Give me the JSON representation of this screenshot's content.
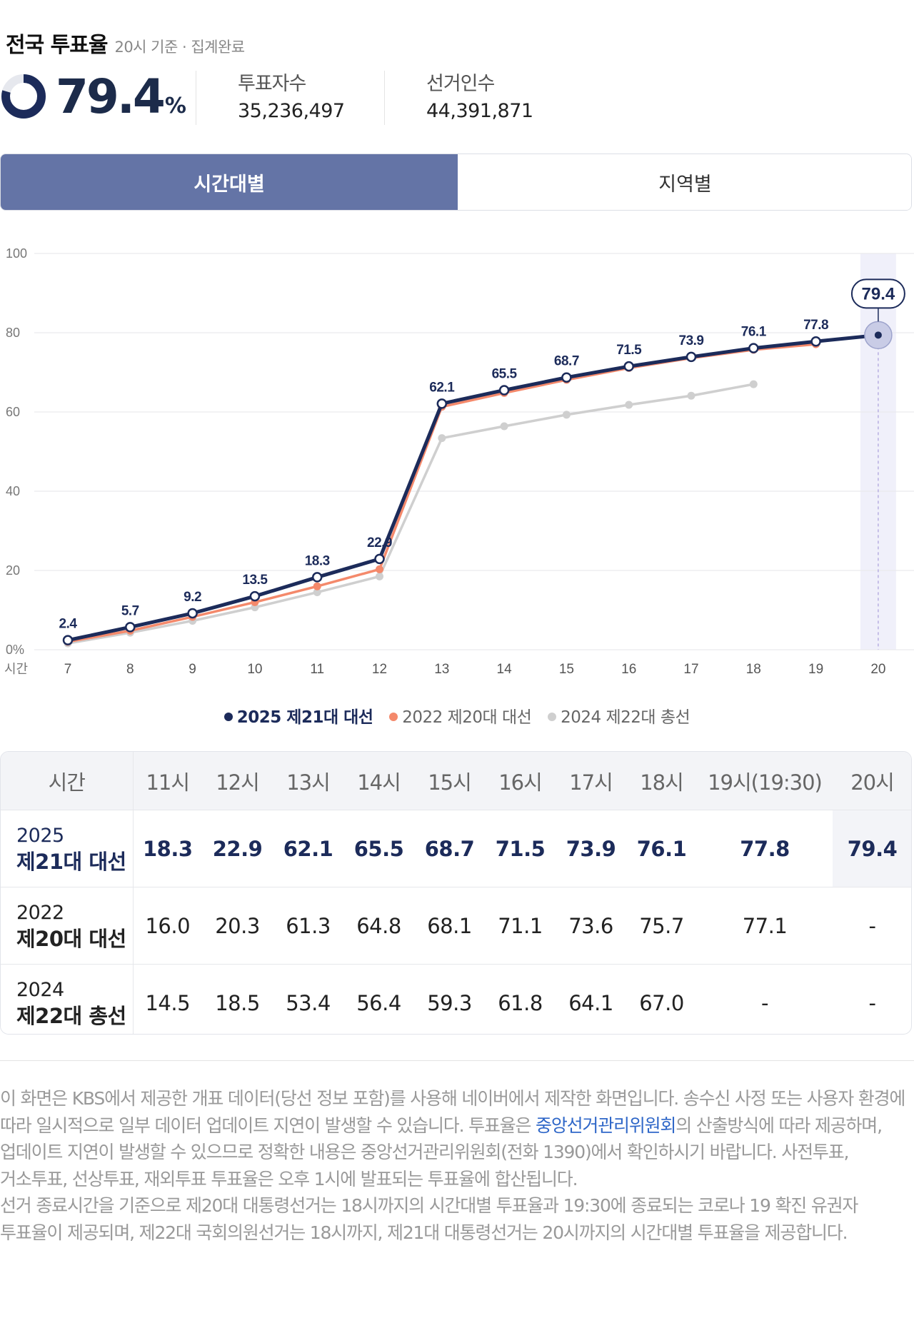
{
  "header": {
    "title": "전국 투표율",
    "subtitle": "20시 기준 · 집계완료"
  },
  "summary": {
    "rate": "79.4",
    "rate_unit": "%",
    "voters_label": "투표자수",
    "voters_value": "35,236,497",
    "electorate_label": "선거인수",
    "electorate_value": "44,391,871"
  },
  "tabs": [
    {
      "label": "시간대별",
      "active": true
    },
    {
      "label": "지역별",
      "active": false
    }
  ],
  "chart_data": {
    "type": "line",
    "x_axis_label": "시간",
    "x": [
      7,
      8,
      9,
      10,
      11,
      12,
      13,
      14,
      15,
      16,
      17,
      18,
      19,
      20
    ],
    "ylim": [
      0,
      100
    ],
    "y_ticks": [
      "0%",
      "20",
      "40",
      "60",
      "80",
      "100"
    ],
    "grid": true,
    "highlight_x": 20,
    "highlight_label": "79.4",
    "series": [
      {
        "name": "2025 제21대 대선",
        "color": "#1c2b5a",
        "values": [
          2.4,
          5.7,
          9.2,
          13.5,
          18.3,
          22.9,
          62.1,
          65.5,
          68.7,
          71.5,
          73.9,
          76.1,
          77.8,
          79.4
        ],
        "labels": [
          "2.4",
          "5.7",
          "9.2",
          "13.5",
          "18.3",
          "22.9",
          "62.1",
          "65.5",
          "68.7",
          "71.5",
          "73.9",
          "76.1",
          "77.8",
          ""
        ]
      },
      {
        "name": "2022 제20대 대선",
        "color": "#f4896b",
        "values": [
          2.0,
          4.8,
          8.3,
          12.0,
          16.0,
          20.3,
          61.3,
          64.8,
          68.1,
          71.1,
          73.6,
          75.7,
          77.1,
          null
        ]
      },
      {
        "name": "2024 제22대 총선",
        "color": "#cfcfcf",
        "values": [
          1.6,
          4.3,
          7.3,
          10.7,
          14.5,
          18.5,
          53.4,
          56.4,
          59.3,
          61.8,
          64.1,
          67.0,
          null,
          null
        ]
      }
    ]
  },
  "legend": [
    {
      "label": "2025 제21대 대선",
      "color": "#1c2b5a"
    },
    {
      "label": "2022 제20대 대선",
      "color": "#f4896b"
    },
    {
      "label": "2024 제22대 총선",
      "color": "#cfcfcf"
    }
  ],
  "table": {
    "corner": "시간",
    "columns": [
      "11시",
      "12시",
      "13시",
      "14시",
      "15시",
      "16시",
      "17시",
      "18시",
      "19시(19:30)",
      "20시"
    ],
    "rows": [
      {
        "year": "2025",
        "name": "제21대 대선",
        "values": [
          "18.3",
          "22.9",
          "62.1",
          "65.5",
          "68.7",
          "71.5",
          "73.9",
          "76.1",
          "77.8",
          "79.4"
        ]
      },
      {
        "year": "2022",
        "name": "제20대 대선",
        "values": [
          "16.0",
          "20.3",
          "61.3",
          "64.8",
          "68.1",
          "71.1",
          "73.6",
          "75.7",
          "77.1",
          "-"
        ]
      },
      {
        "year": "2024",
        "name": "제22대 총선",
        "values": [
          "14.5",
          "18.5",
          "53.4",
          "56.4",
          "59.3",
          "61.8",
          "64.1",
          "67.0",
          "-",
          "-"
        ]
      }
    ]
  },
  "notice": {
    "p1_before": "이 화면은 KBS에서 제공한 개표 데이터(당선 정보 포함)를 사용해 네이버에서 제작한 화면입니다. 송수신 사정 또는 사용자 환경에 따라 일시적으로 일부 데이터 업데이트 지연이 발생할 수 있습니다. 투표율은 ",
    "p1_link": "중앙선거관리위원회",
    "p1_after": "의 산출방식에 따라 제공하며, 업데이트 지연이 발생할 수 있으므로 정확한 내용은 중앙선거관리위원회(전화 1390)에서 확인하시기 바랍니다. 사전투표, 거소투표, 선상투표, 재외투표 투표율은 오후 1시에 발표되는 투표율에 합산됩니다.",
    "p2": "선거 종료시간을 기준으로 제20대 대통령선거는 18시까지의 시간대별 투표율과 19:30에 종료되는 코로나 19 확진 유권자 투표율이 제공되며, 제22대 국회의원선거는 18시까지, 제21대 대통령선거는 20시까지의 시간대별 투표율을 제공합니다."
  }
}
